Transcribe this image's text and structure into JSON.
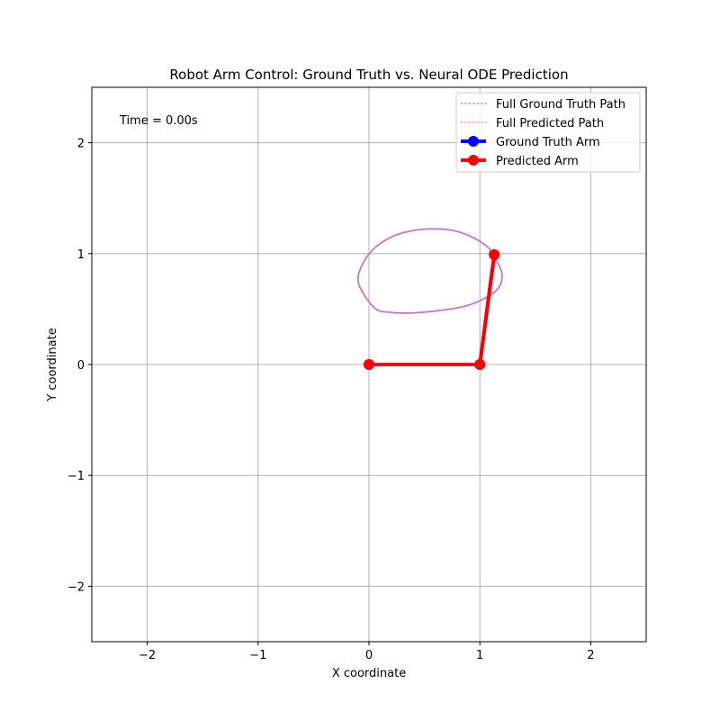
{
  "chart_data": {
    "type": "line",
    "title": "Robot Arm Control: Ground Truth vs. Neural ODE Prediction",
    "xlabel": "X coordinate",
    "ylabel": "Y coordinate",
    "xlim": [
      -2.5,
      2.5
    ],
    "ylim": [
      -2.5,
      2.5
    ],
    "xticks": [
      -2,
      -1,
      0,
      1,
      2
    ],
    "yticks": [
      -2,
      -1,
      0,
      1,
      2
    ],
    "xtick_labels": [
      "−2",
      "−1",
      "0",
      "1",
      "2"
    ],
    "ytick_labels": [
      "−2",
      "−1",
      "0",
      "1",
      "2"
    ],
    "grid": true,
    "legend_position": "top-right",
    "annotation": "Time = 0.00s",
    "colors": {
      "ground_truth_path": "#9b9bef",
      "predicted_path": "#f0a0a0",
      "overlap_path": "#c875c4",
      "ground_truth_arm": "#0000ff",
      "predicted_arm": "#ff0000",
      "grid": "#b0b0b0"
    },
    "series": [
      {
        "name": "Full Ground Truth Path",
        "style": "dotted",
        "x": [
          1.1,
          1.18,
          1.2,
          1.16,
          1.05,
          0.88,
          0.66,
          0.4,
          0.2,
          0.05,
          -0.09,
          -0.07,
          0.05,
          0.25,
          0.5,
          0.75,
          0.95,
          1.08,
          1.1
        ],
        "y": [
          1.0,
          0.88,
          0.78,
          0.68,
          0.6,
          0.53,
          0.49,
          0.465,
          0.47,
          0.51,
          0.72,
          0.88,
          1.05,
          1.17,
          1.22,
          1.21,
          1.14,
          1.05,
          1.0
        ]
      },
      {
        "name": "Full Predicted Path",
        "style": "dotted",
        "x": [
          1.1,
          1.18,
          1.2,
          1.16,
          1.05,
          0.88,
          0.66,
          0.4,
          0.2,
          0.05,
          -0.09,
          -0.07,
          0.05,
          0.25,
          0.5,
          0.75,
          0.95,
          1.08,
          1.1
        ],
        "y": [
          1.0,
          0.88,
          0.78,
          0.68,
          0.6,
          0.53,
          0.49,
          0.465,
          0.47,
          0.51,
          0.72,
          0.88,
          1.05,
          1.17,
          1.22,
          1.21,
          1.14,
          1.05,
          1.0
        ]
      },
      {
        "name": "Ground Truth Arm",
        "style": "solid-markers",
        "x": [
          0,
          1.0,
          1.13
        ],
        "y": [
          0,
          0,
          0.99
        ]
      },
      {
        "name": "Predicted Arm",
        "style": "solid-markers",
        "x": [
          0,
          1.0,
          1.13
        ],
        "y": [
          0,
          0,
          0.99
        ]
      }
    ]
  }
}
